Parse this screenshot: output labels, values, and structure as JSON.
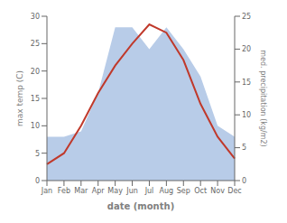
{
  "chart_data": {
    "type": "line",
    "categories": [
      "Jan",
      "Feb",
      "Mar",
      "Apr",
      "May",
      "Jun",
      "Jul",
      "Aug",
      "Sep",
      "Oct",
      "Nov",
      "Dec"
    ],
    "series": [
      {
        "type": "area",
        "color": "#b8cce8",
        "values": [
          8,
          8,
          9,
          16,
          28,
          28,
          24,
          28,
          24,
          19,
          10,
          8
        ]
      },
      {
        "type": "line",
        "color": "#c0392b",
        "values": [
          3,
          5,
          10,
          16,
          21,
          25,
          28.5,
          27,
          22,
          14,
          8,
          4
        ]
      }
    ],
    "xlabel": "date (month)",
    "ylabel": "max temp (C)",
    "y2label": "med. precipitation (kg/m2)",
    "ylim": [
      0,
      30
    ],
    "yticks": [
      0,
      5,
      10,
      15,
      20,
      25,
      30
    ],
    "y2lim": [
      0,
      25
    ],
    "y2ticks": [
      0,
      5,
      10,
      15,
      20,
      25
    ],
    "grid": false
  }
}
